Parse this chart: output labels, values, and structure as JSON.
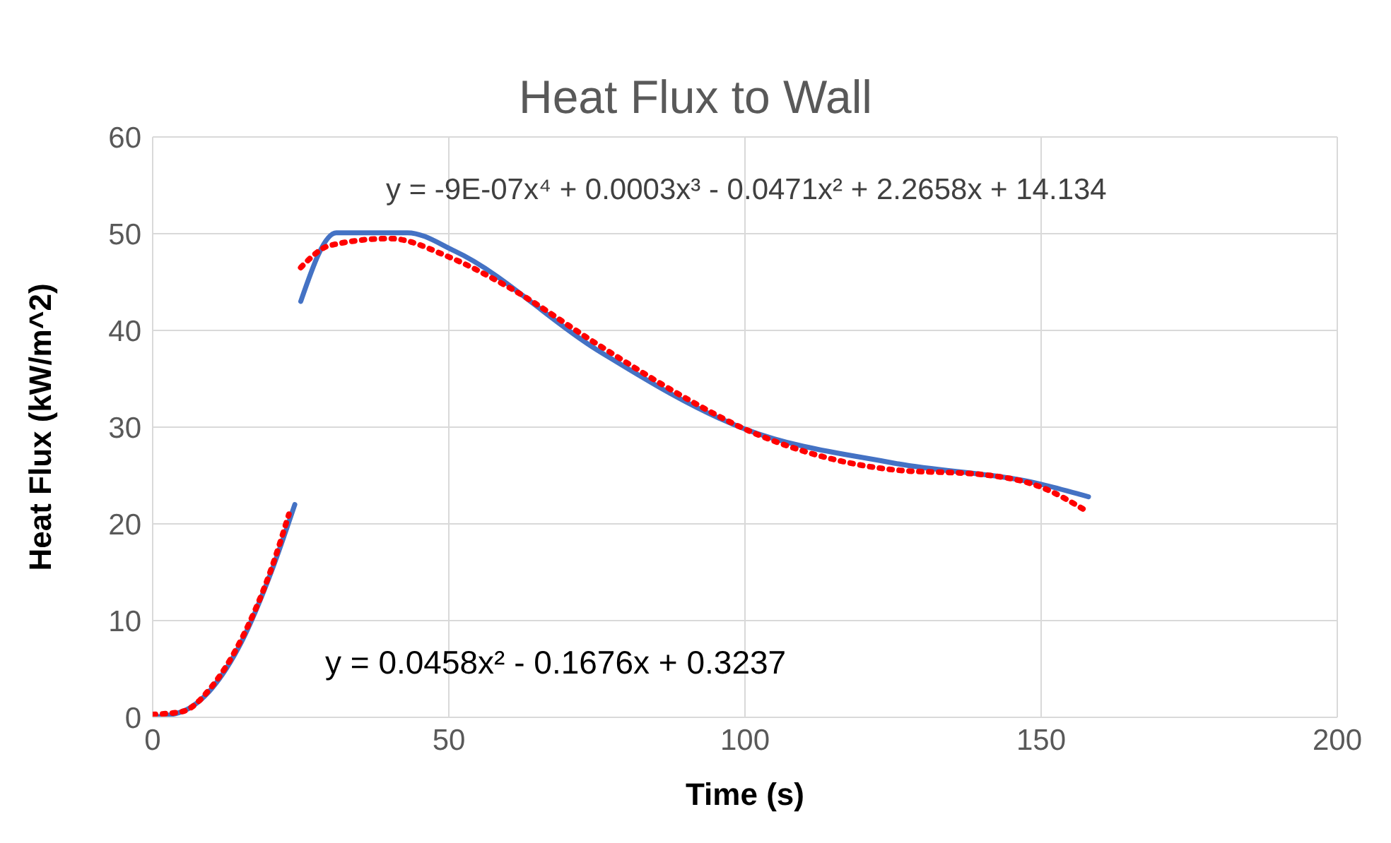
{
  "chart_data": {
    "type": "line",
    "title": "Heat Flux to Wall",
    "xlabel": "Time (s)",
    "ylabel": "Heat Flux (kW/m^2)",
    "xlim": [
      0,
      200
    ],
    "xticks": [
      0,
      50,
      100,
      150,
      200
    ],
    "ylim": [
      0,
      60
    ],
    "yticks": [
      0,
      10,
      20,
      30,
      40,
      50,
      60
    ],
    "grid": true,
    "marker": "none",
    "series": [
      {
        "color": "#4472c4",
        "line_style": "solid",
        "x": [
          0,
          5,
          10,
          15,
          20,
          24
        ],
        "values": [
          0,
          0.6,
          3,
          7.8,
          15,
          22
        ]
      },
      {
        "color": "#4472c4",
        "line_style": "solid",
        "x": [
          25,
          31,
          43,
          51,
          75,
          100,
          125,
          150,
          158
        ],
        "values": [
          43,
          50.1,
          50.1,
          48.2,
          38,
          29.8,
          26.3,
          24.1,
          22.8
        ]
      },
      {
        "color": "#ff0000",
        "line_style": "dotted",
        "x": [
          0,
          5,
          10,
          15,
          20,
          23
        ],
        "values": [
          0.3,
          0.6,
          3.2,
          8.1,
          15.3,
          21
        ]
      },
      {
        "color": "#ff0000",
        "line_style": "dotted",
        "x": [
          25,
          30,
          40,
          50,
          60,
          75,
          90,
          100,
          110,
          125,
          140,
          150,
          158
        ],
        "values": [
          46.5,
          48.8,
          49.5,
          47.6,
          44.5,
          38.6,
          33,
          29.8,
          27.5,
          25.6,
          25.1,
          23.8,
          21.2
        ]
      }
    ],
    "annotations": [
      "y = -9E-07x⁴ + 0.0003x³ - 0.0471x² + 2.2658x + 14.134",
      "y = 0.0458x² - 0.1676x + 0.3237"
    ]
  }
}
